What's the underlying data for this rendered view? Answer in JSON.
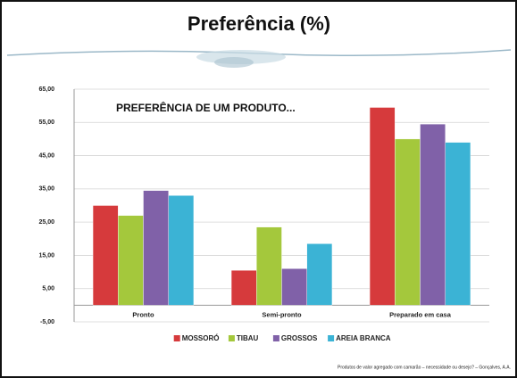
{
  "slide": {
    "title": "Preferência (%)",
    "footer": "Produtos de valor agregado com camarão – necessidade ou desejo? – Gonçalves, A.A."
  },
  "chart_data": {
    "type": "bar",
    "title": "PREFERÊNCIA DE UM PRODUTO...",
    "categories": [
      "Pronto",
      "Semi-pronto",
      "Preparado em casa"
    ],
    "series": [
      {
        "name": "MOSSORÓ",
        "color": "#d63a3c",
        "values": [
          30,
          10.5,
          59.5
        ]
      },
      {
        "name": "TIBAU",
        "color": "#a4c83c",
        "values": [
          27,
          23.5,
          50
        ]
      },
      {
        "name": "GROSSOS",
        "color": "#8061a8",
        "values": [
          34.5,
          11,
          54.5
        ]
      },
      {
        "name": "AREIA BRANCA",
        "color": "#3bb3d5",
        "values": [
          33,
          18.5,
          49
        ]
      }
    ],
    "ylim": [
      -5,
      65
    ],
    "yticks": [
      {
        "value": -5,
        "label": "-5,00"
      },
      {
        "value": 5,
        "label": "5,00"
      },
      {
        "value": 15,
        "label": "15,00"
      },
      {
        "value": 25,
        "label": "25,00"
      },
      {
        "value": 35,
        "label": "35,00"
      },
      {
        "value": 45,
        "label": "45,00"
      },
      {
        "value": 55,
        "label": "55,00"
      },
      {
        "value": 65,
        "label": "65,00"
      }
    ],
    "grid": true,
    "legend": "bottom"
  }
}
